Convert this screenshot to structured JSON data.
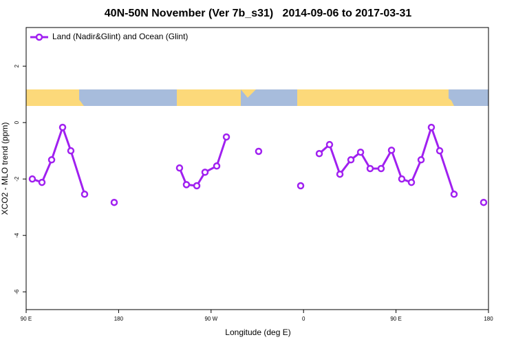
{
  "chart_data": {
    "type": "line",
    "title": "40N-50N November (Ver 7b_s31)   2014-09-06 to 2017-03-31",
    "x_label": "Longitude (deg E)",
    "y_label": "XCO2 - MLO trend (ppm)",
    "xlim": [
      90,
      540
    ],
    "xticks": [
      {
        "value": 90,
        "label": "90 E"
      },
      180,
      {
        "value": 270,
        "label": "90 W"
      },
      {
        "value": 360,
        "label": "0"
      },
      {
        "value": 450,
        "label": "90 E"
      },
      {
        "value": 540,
        "label": "180"
      }
    ],
    "ylim": [
      -6.63,
      3.37
    ],
    "yticks": [
      -6,
      -4,
      -2,
      0,
      2
    ],
    "series": [
      {
        "name": "Land (Nadir&Glint) and Ocean (Glint)",
        "color": "#a020f0",
        "x": [
          96,
          105.4,
          114.8,
          125.5,
          133.5,
          146.9,
          175.7,
          239.3,
          246,
          256.1,
          264.1,
          275.5,
          284.9,
          316.3,
          357.2,
          375.3,
          385.3,
          395.4,
          406.1,
          415.5,
          424.8,
          435.5,
          445.6,
          455.6,
          465,
          474.4,
          484.4,
          492.5,
          506.5,
          535.3
        ],
        "values": [
          -2.0,
          -2.12,
          -1.32,
          -0.17,
          -1.0,
          -2.54,
          -2.83,
          -1.61,
          -2.2,
          -2.24,
          -1.76,
          -1.54,
          -0.51,
          -1.02,
          -2.24,
          -1.1,
          -0.78,
          -1.83,
          -1.32,
          -1.05,
          -1.63,
          -1.63,
          -0.98,
          -2.0,
          -2.12,
          -1.32,
          -0.17,
          -1.0,
          -2.54,
          -2.83
        ]
      }
    ]
  }
}
